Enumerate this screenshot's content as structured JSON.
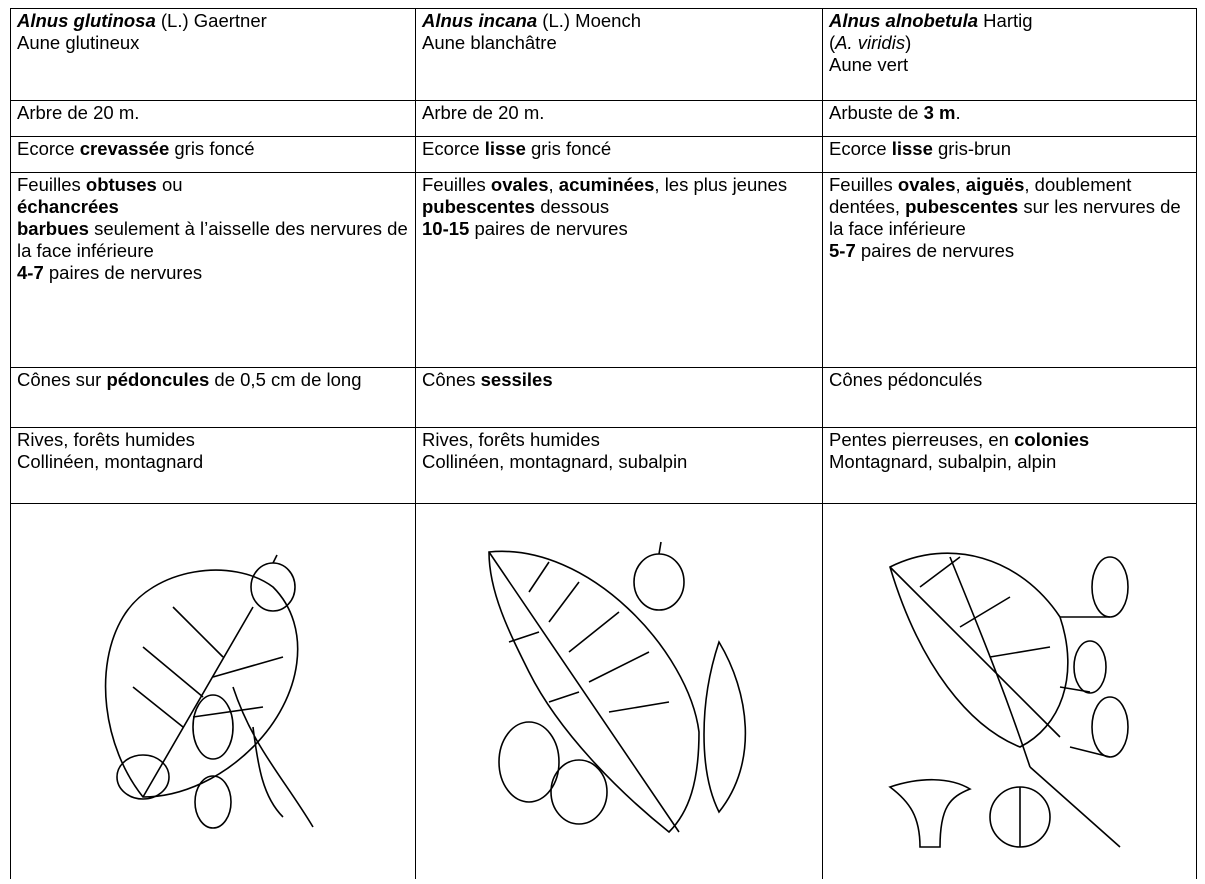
{
  "table": {
    "rows": [
      [
        [
          [
            {
              "text": "Alnus glutinosa",
              "style": "bold-italic"
            },
            " (L.) Gaertner"
          ],
          [
            "Aune glutineux"
          ]
        ],
        [
          [
            {
              "text": "Alnus incana",
              "style": "bold-italic"
            },
            " (L.) Moench"
          ],
          [
            "Aune blanchâtre"
          ]
        ],
        [
          [
            {
              "text": "Alnus alnobetula",
              "style": "bold-italic"
            },
            " Hartig"
          ],
          [
            "(",
            {
              "text": "A. viridis",
              "style": "italic"
            },
            ")"
          ],
          [
            "Aune vert"
          ]
        ]
      ],
      [
        [
          [
            "Arbre de 20 m."
          ]
        ],
        [
          [
            "Arbre de 20 m."
          ]
        ],
        [
          [
            "Arbuste de ",
            {
              "text": "3 m",
              "style": "bold"
            },
            "."
          ]
        ]
      ],
      [
        [
          [
            "Ecorce ",
            {
              "text": "crevassée",
              "style": "bold"
            },
            " gris foncé"
          ]
        ],
        [
          [
            "Ecorce ",
            {
              "text": "lisse",
              "style": "bold"
            },
            " gris foncé"
          ]
        ],
        [
          [
            "Ecorce ",
            {
              "text": "lisse",
              "style": "bold"
            },
            " gris-brun"
          ]
        ]
      ],
      [
        [
          [
            "Feuilles ",
            {
              "text": "obtuses",
              "style": "bold"
            },
            " ou"
          ],
          [
            {
              "text": "échancrées",
              "style": "bold"
            }
          ],
          [
            {
              "text": "barbues",
              "style": "bold"
            },
            " seulement à l’aisselle des nervures de la face inférieure"
          ],
          [
            {
              "text": "4-7",
              "style": "bold"
            },
            " paires de nervures"
          ]
        ],
        [
          [
            "Feuilles ",
            {
              "text": "ovales",
              "style": "bold"
            },
            ", ",
            {
              "text": "acuminées",
              "style": "bold"
            },
            ", les plus jeunes ",
            {
              "text": "pubescentes",
              "style": "bold"
            },
            " dessous"
          ],
          [
            {
              "text": "10-15",
              "style": "bold"
            },
            " paires de nervures"
          ]
        ],
        [
          [
            "Feuilles ",
            {
              "text": "ovales",
              "style": "bold"
            },
            ", ",
            {
              "text": "aiguës",
              "style": "bold"
            },
            ", doublement dentées, ",
            {
              "text": "pubescentes",
              "style": "bold"
            },
            " sur les nervures de la face inférieure"
          ],
          [
            {
              "text": "5-7",
              "style": "bold"
            },
            " paires de nervures"
          ]
        ]
      ],
      [
        [
          [
            "Cônes sur ",
            {
              "text": "pédoncules",
              "style": "bold"
            },
            " de 0,5 cm de long"
          ]
        ],
        [
          [
            "Cônes ",
            {
              "text": "sessiles",
              "style": "bold"
            }
          ]
        ],
        [
          [
            "Cônes pédonculés"
          ]
        ]
      ],
      [
        [
          [
            "Rives, forêts humides"
          ],
          [
            "Collinéen, montagnard"
          ]
        ],
        [
          [
            "Rives, forêts humides"
          ],
          [
            "Collinéen, montagnard, subalpin"
          ]
        ],
        [
          [
            "Pentes pierreuses, en ",
            {
              "text": "colonies",
              "style": "bold"
            }
          ],
          [
            "Montagnard, subalpin, alpin"
          ]
        ]
      ]
    ]
  }
}
